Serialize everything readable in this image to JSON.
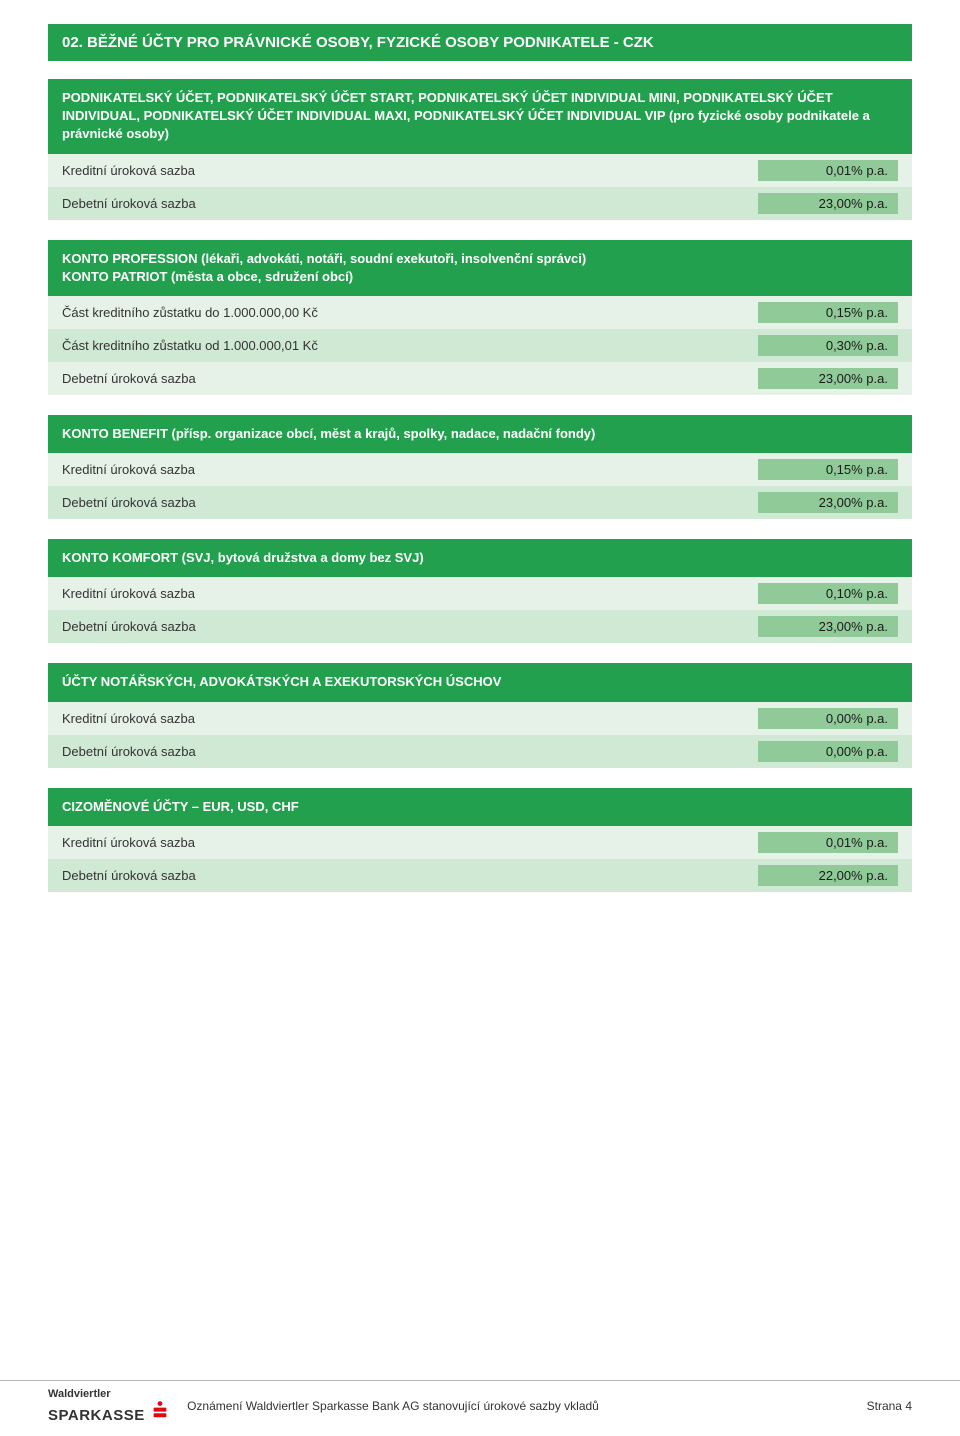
{
  "colors": {
    "header_bg": "#22a04e",
    "header_text": "#ffffff",
    "row_odd_bg": "#e6f2e8",
    "row_even_bg": "#d0e9d4",
    "value_bg": "#8fca98",
    "text": "#333333"
  },
  "page_title": "02. BĚŽNÉ ÚČTY PRO PRÁVNICKÉ OSOBY, FYZICKÉ OSOBY PODNIKATELE - CZK",
  "sections": [
    {
      "header": "PODNIKATELSKÝ ÚČET, PODNIKATELSKÝ ÚČET START, PODNIKATELSKÝ ÚČET INDIVIDUAL MINI, PODNIKATELSKÝ ÚČET INDIVIDUAL, PODNIKATELSKÝ ÚČET INDIVIDUAL MAXI, PODNIKATELSKÝ ÚČET INDIVIDUAL VIP (pro fyzické osoby podnikatele a právnické osoby)",
      "rows": [
        {
          "label": "Kreditní úroková sazba",
          "value": "0,01% p.a."
        },
        {
          "label": "Debetní úroková sazba",
          "value": "23,00% p.a."
        }
      ]
    },
    {
      "header": "KONTO PROFESSION (lékaři, advokáti, notáři, soudní exekutoři, insolvenční správci)\nKONTO PATRIOT (města a obce, sdružení obcí)",
      "rows": [
        {
          "label": "Část kreditního zůstatku do 1.000.000,00 Kč",
          "value": "0,15% p.a."
        },
        {
          "label": "Část kreditního zůstatku od 1.000.000,01 Kč",
          "value": "0,30% p.a."
        },
        {
          "label": "Debetní úroková sazba",
          "value": "23,00% p.a."
        }
      ]
    },
    {
      "header": "KONTO BENEFIT (přísp. organizace obcí, měst a krajů, spolky, nadace, nadační fondy)",
      "rows": [
        {
          "label": "Kreditní úroková sazba",
          "value": "0,15% p.a."
        },
        {
          "label": "Debetní úroková sazba",
          "value": "23,00% p.a."
        }
      ]
    },
    {
      "header": "KONTO KOMFORT (SVJ, bytová družstva a domy bez SVJ)",
      "rows": [
        {
          "label": "Kreditní úroková sazba",
          "value": "0,10% p.a."
        },
        {
          "label": "Debetní úroková sazba",
          "value": "23,00% p.a."
        }
      ]
    },
    {
      "header": "ÚČTY NOTÁŘSKÝCH, ADVOKÁTSKÝCH A EXEKUTORSKÝCH ÚSCHOV",
      "rows": [
        {
          "label": "Kreditní úroková sazba",
          "value": "0,00% p.a."
        },
        {
          "label": "Debetní úroková sazba",
          "value": "0,00% p.a."
        }
      ]
    },
    {
      "header": "CIZOMĚNOVÉ ÚČTY – EUR, USD, CHF",
      "rows": [
        {
          "label": "Kreditní úroková sazba",
          "value": "0,01% p.a."
        },
        {
          "label": "Debetní úroková sazba",
          "value": "22,00% p.a."
        }
      ]
    }
  ],
  "footer": {
    "logo_top": "Waldviertler",
    "logo_bottom": "SPARKASSE",
    "center_text": "Oznámení Waldviertler Sparkasse Bank AG stanovující úrokové sazby vkladů",
    "page_label": "Strana 4"
  }
}
